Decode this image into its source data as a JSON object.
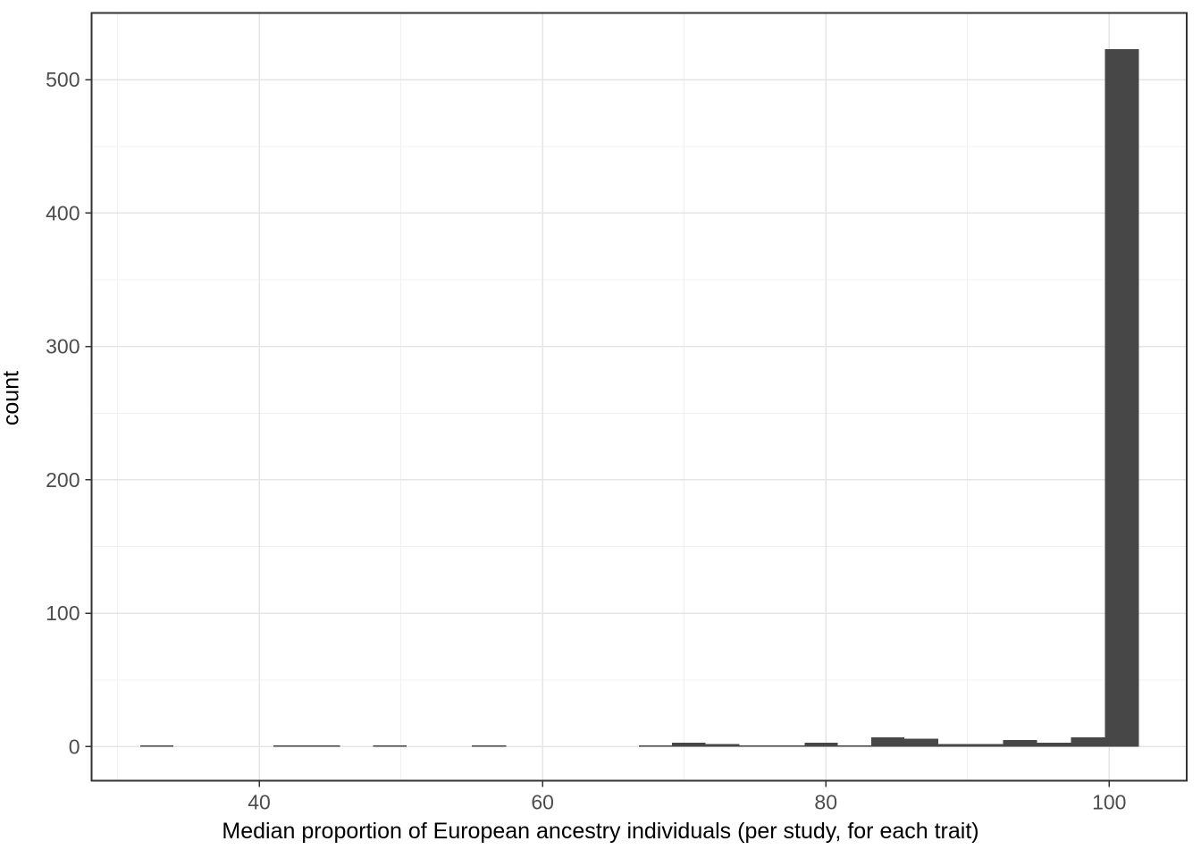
{
  "figure": {
    "kind": "ggplot-style histogram",
    "background_color": "#ffffff"
  },
  "chart_data": {
    "type": "bar",
    "subtype": "histogram",
    "title": "",
    "xlabel": "Median proportion of European ancestry individuals (per study, for each trait)",
    "ylabel": "count",
    "xlim": [
      28.17,
      105.47
    ],
    "ylim": [
      -25.5,
      550
    ],
    "grid": "on",
    "legend": "none",
    "x_ticks": {
      "values": [
        40,
        60,
        80,
        100
      ],
      "labels": [
        "40",
        "60",
        "80",
        "100"
      ]
    },
    "x_minor_ticks": [
      30,
      50,
      70,
      90
    ],
    "y_ticks": {
      "values": [
        0,
        100,
        200,
        300,
        400,
        500
      ],
      "labels": [
        "0",
        "100",
        "200",
        "300",
        "400",
        "500"
      ]
    },
    "y_minor_ticks": [
      50,
      150,
      250,
      350,
      450
    ],
    "bins": [
      {
        "x0": 31.6,
        "x1": 33.95,
        "count": 1
      },
      {
        "x0": 41.0,
        "x1": 43.35,
        "count": 1
      },
      {
        "x0": 43.35,
        "x1": 45.7,
        "count": 1
      },
      {
        "x0": 48.05,
        "x1": 50.4,
        "count": 1
      },
      {
        "x0": 55.0,
        "x1": 57.45,
        "count": 1
      },
      {
        "x0": 66.8,
        "x1": 69.15,
        "count": 1
      },
      {
        "x0": 69.15,
        "x1": 71.5,
        "count": 3
      },
      {
        "x0": 71.5,
        "x1": 73.9,
        "count": 2
      },
      {
        "x0": 73.9,
        "x1": 76.2,
        "count": 1
      },
      {
        "x0": 76.2,
        "x1": 78.5,
        "count": 1
      },
      {
        "x0": 78.5,
        "x1": 80.85,
        "count": 3
      },
      {
        "x0": 80.85,
        "x1": 83.2,
        "count": 1
      },
      {
        "x0": 83.2,
        "x1": 85.55,
        "count": 7
      },
      {
        "x0": 85.55,
        "x1": 87.95,
        "count": 6
      },
      {
        "x0": 87.95,
        "x1": 90.25,
        "count": 2
      },
      {
        "x0": 90.25,
        "x1": 92.5,
        "count": 2
      },
      {
        "x0": 92.5,
        "x1": 94.9,
        "count": 5
      },
      {
        "x0": 94.9,
        "x1": 97.3,
        "count": 3
      },
      {
        "x0": 97.3,
        "x1": 99.7,
        "count": 7
      },
      {
        "x0": 99.7,
        "x1": 102.1,
        "count": 523
      }
    ],
    "colors": {
      "bar_fill": "#474747",
      "panel_border": "#333333",
      "grid_major": "#e5e5e5",
      "grid_minor": "#f0f0f0",
      "tick_mark": "#333333",
      "tick_label": "#4d4d4d",
      "axis_title": "#000000"
    }
  }
}
